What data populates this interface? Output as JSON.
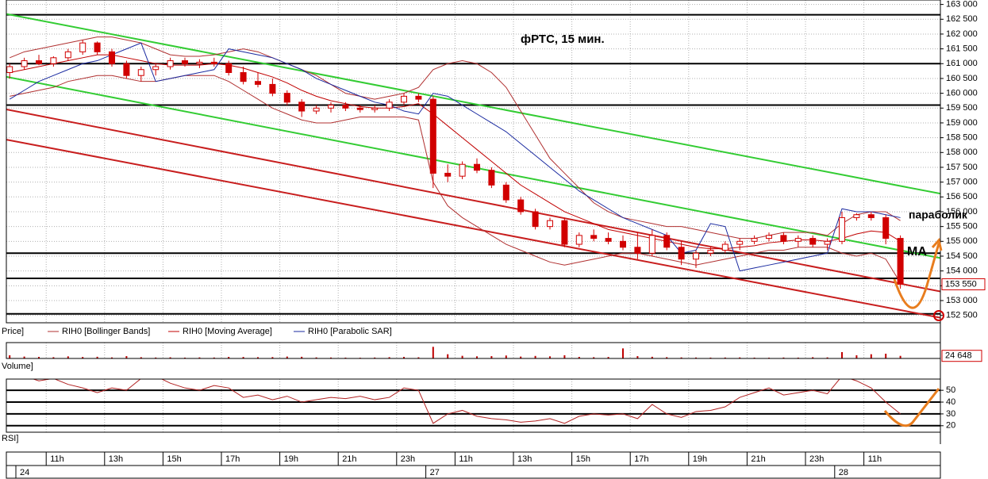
{
  "chart_data": [
    {
      "type": "candlestick",
      "title": "фРТС,  15 мин.",
      "annotations": [
        "параболик",
        "MA"
      ],
      "legend_label": "Price]",
      "categories": [
        null,
        null,
        null,
        "11h",
        null,
        null,
        null,
        "13h",
        null,
        null,
        null,
        "15h",
        null,
        null,
        null,
        "17h",
        null,
        null,
        null,
        "19h",
        null,
        null,
        null,
        "21h",
        null,
        null,
        null,
        "23h",
        null,
        null,
        null,
        "11h",
        null,
        null,
        null,
        "13h",
        null,
        null,
        null,
        "15h",
        null,
        null,
        null,
        "17h",
        null,
        null,
        null,
        "19h",
        null,
        null,
        null,
        "21h",
        null,
        null,
        null,
        "23h",
        null,
        null,
        null,
        "11h",
        null,
        null
      ],
      "dates": [
        "24",
        null,
        null,
        null,
        null,
        null,
        null,
        null,
        null,
        null,
        null,
        null,
        null,
        null,
        null,
        null,
        null,
        null,
        null,
        null,
        null,
        null,
        null,
        null,
        null,
        null,
        null,
        null,
        null,
        "27",
        null,
        null,
        null,
        null,
        null,
        null,
        null,
        null,
        null,
        null,
        null,
        null,
        null,
        null,
        null,
        null,
        null,
        null,
        null,
        null,
        null,
        null,
        null,
        null,
        null,
        null,
        null,
        "28",
        null,
        null,
        null,
        null
      ],
      "open": [
        160700,
        160900,
        161100,
        161000,
        161200,
        161400,
        161700,
        161400,
        161000,
        160600,
        160800,
        160900,
        161100,
        161000,
        161050,
        161000,
        160700,
        160400,
        160300,
        160000,
        159700,
        159400,
        159500,
        159600,
        159500,
        159450,
        159500,
        159700,
        159900,
        159800,
        157300,
        157200,
        157600,
        157400,
        156900,
        156400,
        156000,
        155500,
        155700,
        154900,
        155200,
        155100,
        155000,
        154800,
        154600,
        155200,
        154800,
        154400,
        154600,
        154700,
        154900,
        155000,
        155100,
        155200,
        155000,
        155100,
        154900,
        155000,
        155800,
        155900,
        155800,
        155100
      ],
      "high": [
        161000,
        161200,
        161300,
        161250,
        161500,
        161800,
        161750,
        161500,
        161100,
        160900,
        161000,
        161200,
        161200,
        161150,
        161200,
        161100,
        160900,
        160700,
        160500,
        160100,
        159800,
        159600,
        159700,
        159700,
        159600,
        159600,
        159800,
        160000,
        160000,
        159900,
        157600,
        157700,
        157800,
        157500,
        157000,
        156500,
        156100,
        155800,
        155800,
        155300,
        155400,
        155300,
        155200,
        155300,
        155400,
        155300,
        155000,
        154700,
        154800,
        155000,
        155100,
        155200,
        155300,
        155300,
        155200,
        155200,
        155100,
        156000,
        155950,
        156000,
        155900,
        155200
      ],
      "low": [
        160500,
        160800,
        160950,
        160900,
        161100,
        161300,
        161300,
        160900,
        160500,
        160400,
        160600,
        160800,
        160900,
        160850,
        160900,
        160600,
        160300,
        160200,
        159900,
        159600,
        159200,
        159300,
        159350,
        159400,
        159350,
        159350,
        159400,
        159600,
        159700,
        156800,
        157000,
        157100,
        157300,
        156800,
        156300,
        155900,
        155400,
        155400,
        154800,
        154800,
        155000,
        154900,
        154700,
        154400,
        154500,
        154700,
        154200,
        154100,
        154500,
        154600,
        154700,
        154900,
        155000,
        154900,
        154800,
        154800,
        154700,
        154900,
        155700,
        155700,
        154900,
        153400
      ],
      "close": [
        160900,
        161100,
        161000,
        161200,
        161400,
        161700,
        161400,
        161000,
        160600,
        160800,
        160900,
        161100,
        161000,
        161050,
        161000,
        160700,
        160400,
        160300,
        160000,
        159700,
        159400,
        159500,
        159600,
        159500,
        159450,
        159500,
        159700,
        159900,
        159800,
        157300,
        157200,
        157600,
        157400,
        156900,
        156400,
        156000,
        155500,
        155700,
        154900,
        155200,
        155100,
        155000,
        154800,
        154600,
        155200,
        154800,
        154400,
        154600,
        154700,
        154900,
        155000,
        155100,
        155200,
        155000,
        155100,
        154900,
        155000,
        155800,
        155900,
        155800,
        155100,
        153550
      ],
      "candle_color": "#d10000",
      "series": [
        {
          "name": "RIH0 [Bollinger Bands]",
          "color": "#b03030",
          "upper": [
            161200,
            161400,
            161500,
            161600,
            161700,
            161800,
            161900,
            161900,
            161800,
            161700,
            161500,
            161300,
            161250,
            161250,
            161300,
            161400,
            161500,
            161400,
            161200,
            161000,
            160800,
            160600,
            160300,
            160000,
            159900,
            159800,
            159900,
            160000,
            160200,
            160800,
            161000,
            161100,
            161000,
            160700,
            160200,
            159400,
            158600,
            157800,
            157300,
            156800,
            156300,
            156000,
            155800,
            155700,
            155600,
            155500,
            155500,
            155400,
            155300,
            155200,
            155100,
            155100,
            155200,
            155300,
            155300,
            155300,
            155200,
            155600,
            155900,
            156000,
            156000,
            155700
          ],
          "lower": [
            159900,
            160000,
            160100,
            160200,
            160400,
            160500,
            160600,
            160600,
            160500,
            160400,
            160400,
            160500,
            160600,
            160600,
            160600,
            160400,
            160100,
            159800,
            159500,
            159300,
            159100,
            159000,
            159000,
            159100,
            159200,
            159200,
            159200,
            159200,
            159100,
            157000,
            156200,
            155800,
            155500,
            155200,
            154900,
            154700,
            154500,
            154300,
            154200,
            154300,
            154400,
            154500,
            154600,
            154600,
            154500,
            154400,
            154300,
            154200,
            154300,
            154400,
            154500,
            154600,
            154700,
            154700,
            154800,
            154800,
            154800,
            154600,
            154500,
            154600,
            154400,
            153600
          ]
        },
        {
          "name": "RIH0 [Moving Average]",
          "color": "#c00000",
          "values": [
            160700,
            160800,
            160900,
            161000,
            161100,
            161200,
            161300,
            161300,
            161200,
            161100,
            161000,
            160950,
            160950,
            160950,
            161000,
            160950,
            160850,
            160700,
            160550,
            160350,
            160100,
            159900,
            159750,
            159650,
            159550,
            159500,
            159500,
            159550,
            159650,
            159300,
            158900,
            158500,
            158100,
            157700,
            157300,
            156900,
            156600,
            156300,
            156000,
            155800,
            155600,
            155400,
            155300,
            155200,
            155100,
            155000,
            154900,
            154800,
            154750,
            154750,
            154800,
            154850,
            154950,
            155000,
            155050,
            155050,
            155000,
            155100,
            155250,
            155350,
            155300,
            155000
          ]
        },
        {
          "name": "RIH0 [Parabolic SAR]",
          "color": "#1a2aa0",
          "values": [
            159800,
            160100,
            160400,
            160600,
            160800,
            161000,
            161100,
            161300,
            161500,
            161700,
            160400,
            160500,
            160600,
            160700,
            160800,
            161500,
            161400,
            161300,
            161200,
            161000,
            160800,
            160500,
            160300,
            160100,
            159900,
            159700,
            159600,
            159400,
            159300,
            160000,
            159900,
            159600,
            159300,
            159000,
            158700,
            158300,
            157900,
            157500,
            157100,
            156700,
            156400,
            156100,
            155800,
            155600,
            155400,
            155200,
            154600,
            154700,
            155600,
            155500,
            154000,
            154100,
            154200,
            154300,
            154400,
            154500,
            154600,
            156100,
            156000,
            156000,
            155900,
            155800
          ]
        }
      ],
      "trendlines": [
        {
          "color": "#33cc33",
          "values": [
            162678,
            156610
          ]
        },
        {
          "color": "#33cc33",
          "values": [
            160557,
            154435
          ]
        },
        {
          "color": "#c81e1e",
          "values": [
            159456,
            153307
          ]
        },
        {
          "color": "#c81e1e",
          "values": [
            158435,
            152421
          ]
        }
      ],
      "levels": [
        162650,
        161000,
        159600,
        154600,
        153750,
        152550
      ],
      "last_price": {
        "value": 153550,
        "label": "153 550"
      },
      "ylim": [
        152250,
        163150
      ],
      "grid": true,
      "yticks": [
        {
          "value": 152500,
          "label": "152 500"
        },
        {
          "value": 153000,
          "label": "153 000"
        },
        {
          "value": 153500,
          "label": "153 500"
        },
        {
          "value": 154000,
          "label": "154 000"
        },
        {
          "value": 154500,
          "label": "154 500"
        },
        {
          "value": 155000,
          "label": "155 000"
        },
        {
          "value": 155500,
          "label": "155 500"
        },
        {
          "value": 156000,
          "label": "156 000"
        },
        {
          "value": 156500,
          "label": "156 500"
        },
        {
          "value": 157000,
          "label": "157 000"
        },
        {
          "value": 157500,
          "label": "157 500"
        },
        {
          "value": 158000,
          "label": "158 000"
        },
        {
          "value": 158500,
          "label": "158 500"
        },
        {
          "value": 159000,
          "label": "159 000"
        },
        {
          "value": 159500,
          "label": "159 500"
        },
        {
          "value": 160000,
          "label": "160 000"
        },
        {
          "value": 160500,
          "label": "160 500"
        },
        {
          "value": 161000,
          "label": "161 000"
        },
        {
          "value": 161500,
          "label": "161 500"
        },
        {
          "value": 162000,
          "label": "162 000"
        },
        {
          "value": 162500,
          "label": "162 500"
        },
        {
          "value": 163000,
          "label": "163 000"
        }
      ]
    },
    {
      "type": "bar",
      "legend_label": "Volume]",
      "color": "#c00000",
      "ylim": [
        0,
        150000
      ],
      "values": [
        30000,
        18000,
        15000,
        12000,
        20000,
        14000,
        16000,
        10000,
        22000,
        12000,
        9000,
        11000,
        8000,
        10000,
        9000,
        15000,
        14000,
        12000,
        13000,
        18000,
        16000,
        10000,
        9000,
        8000,
        7000,
        9000,
        12000,
        15000,
        11000,
        110000,
        40000,
        25000,
        20000,
        22000,
        28000,
        18000,
        24000,
        20000,
        30000,
        15000,
        12000,
        14000,
        95000,
        22000,
        16000,
        12000,
        10000,
        9000,
        8000,
        9000,
        10000,
        8000,
        7000,
        9000,
        8000,
        12000,
        10000,
        60000,
        30000,
        40000,
        45000,
        24648
      ],
      "last_value": {
        "value": 24648,
        "label": "24 648"
      }
    },
    {
      "type": "line",
      "legend_label": "RSI]",
      "color": "#b22222",
      "ylim": [
        14.5,
        59.5
      ],
      "yticks": [
        20,
        30,
        40,
        50
      ],
      "values": [
        62,
        62,
        58,
        60,
        55,
        52,
        48,
        52,
        50,
        60,
        62,
        56,
        52,
        50,
        54,
        52,
        44,
        46,
        42,
        45,
        40,
        42,
        44,
        43,
        45,
        42,
        44,
        52,
        50,
        22,
        30,
        33,
        28,
        26,
        25,
        23,
        24,
        26,
        22,
        28,
        30,
        29,
        30,
        26,
        38,
        30,
        27,
        32,
        33,
        36,
        44,
        48,
        52,
        46,
        48,
        50,
        47,
        62,
        58,
        52,
        40,
        30
      ]
    }
  ]
}
